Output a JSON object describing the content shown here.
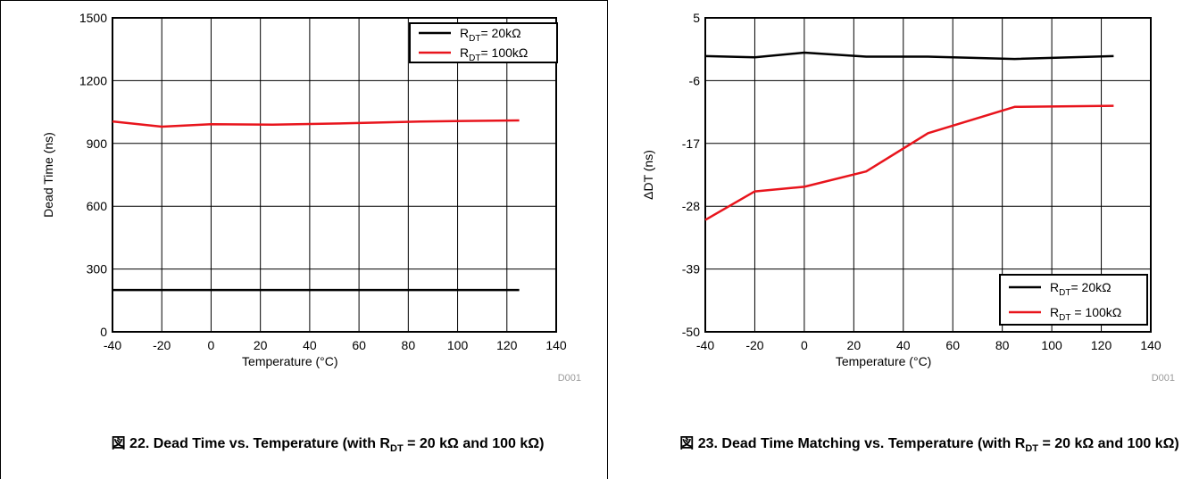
{
  "charts": [
    {
      "caption": {
        "prefix": "図 22. Dead Time vs. Temperature (with R",
        "sub": "DT",
        "suffix": " = 20 kΩ and 100 kΩ)"
      },
      "credit": "D001"
    },
    {
      "caption": {
        "prefix": "図 23. Dead Time Matching vs. Temperature (with R",
        "sub": "DT",
        "suffix": " = 20 kΩ and 100 kΩ)"
      },
      "credit": "D001"
    }
  ],
  "chart_data": [
    {
      "type": "line",
      "xlabel": "Temperature (°C)",
      "ylabel": "Dead Time (ns)",
      "xlim": [
        -40,
        140
      ],
      "ylim": [
        0,
        1500
      ],
      "xticks": [
        -40,
        -20,
        0,
        20,
        40,
        60,
        80,
        100,
        120,
        140
      ],
      "yticks": [
        0,
        300,
        600,
        900,
        1200,
        1500
      ],
      "grid": true,
      "legend_position": "top-right",
      "series": [
        {
          "name": "R_DT= 20kΩ",
          "label_main": "R",
          "label_sub": "DT",
          "label_rest": "= 20kΩ",
          "color": "#000000",
          "x": [
            -40,
            -20,
            0,
            25,
            50,
            85,
            125
          ],
          "y": [
            200,
            200,
            200,
            200,
            200,
            200,
            200
          ]
        },
        {
          "name": "R_DT= 100kΩ",
          "label_main": "R",
          "label_sub": "DT",
          "label_rest": "= 100kΩ",
          "color": "#e8141c",
          "x": [
            -40,
            -20,
            0,
            25,
            50,
            85,
            125
          ],
          "y": [
            1005,
            980,
            992,
            990,
            995,
            1005,
            1010
          ]
        }
      ]
    },
    {
      "type": "line",
      "xlabel": "Temperature (°C)",
      "ylabel": "ΔDT (ns)",
      "xlim": [
        -40,
        140
      ],
      "ylim": [
        -50,
        5
      ],
      "xticks": [
        -40,
        -20,
        0,
        20,
        40,
        60,
        80,
        100,
        120,
        140
      ],
      "yticks": [
        -50,
        -39,
        -28,
        -17,
        -6,
        5
      ],
      "grid": true,
      "legend_position": "bottom-right",
      "series": [
        {
          "name": "R_DT= 20kΩ",
          "label_main": "R",
          "label_sub": "DT",
          "label_rest": "= 20kΩ",
          "color": "#000000",
          "x": [
            -40,
            -20,
            0,
            25,
            50,
            85,
            125
          ],
          "y": [
            -1.7,
            -1.9,
            -1.1,
            -1.8,
            -1.8,
            -2.2,
            -1.7
          ]
        },
        {
          "name": "R_DT = 100kΩ",
          "label_main": "R",
          "label_sub": "DT",
          "label_rest": " = 100kΩ",
          "color": "#e8141c",
          "x": [
            -40,
            -20,
            0,
            25,
            50,
            85,
            125
          ],
          "y": [
            -30.4,
            -25.4,
            -24.6,
            -21.9,
            -15.2,
            -10.6,
            -10.4
          ]
        }
      ]
    }
  ]
}
